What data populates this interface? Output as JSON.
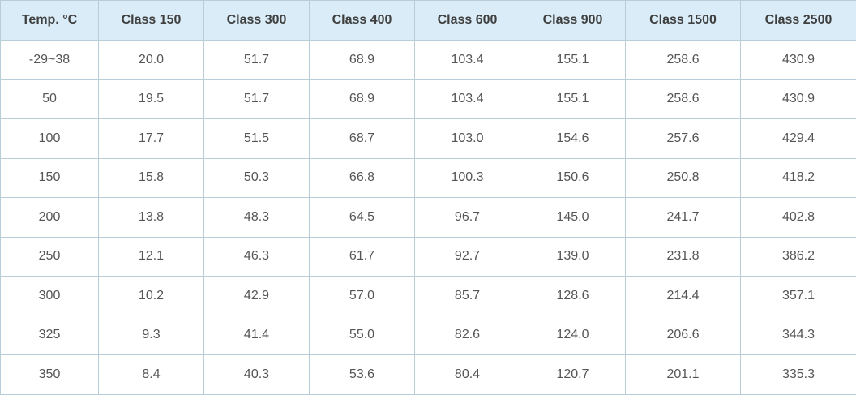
{
  "table": {
    "headers": [
      "Temp. °C",
      "Class 150",
      "Class 300",
      "Class 400",
      "Class 600",
      "Class 900",
      "Class 1500",
      "Class 2500"
    ],
    "rows": [
      [
        "-29~38",
        "20.0",
        "51.7",
        "68.9",
        "103.4",
        "155.1",
        "258.6",
        "430.9"
      ],
      [
        "50",
        "19.5",
        "51.7",
        "68.9",
        "103.4",
        "155.1",
        "258.6",
        "430.9"
      ],
      [
        "100",
        "17.7",
        "51.5",
        "68.7",
        "103.0",
        "154.6",
        "257.6",
        "429.4"
      ],
      [
        "150",
        "15.8",
        "50.3",
        "66.8",
        "100.3",
        "150.6",
        "250.8",
        "418.2"
      ],
      [
        "200",
        "13.8",
        "48.3",
        "64.5",
        "96.7",
        "145.0",
        "241.7",
        "402.8"
      ],
      [
        "250",
        "12.1",
        "46.3",
        "61.7",
        "92.7",
        "139.0",
        "231.8",
        "386.2"
      ],
      [
        "300",
        "10.2",
        "42.9",
        "57.0",
        "85.7",
        "128.6",
        "214.4",
        "357.1"
      ],
      [
        "325",
        "9.3",
        "41.4",
        "55.0",
        "82.6",
        "124.0",
        "206.6",
        "344.3"
      ],
      [
        "350",
        "8.4",
        "40.3",
        "53.6",
        "80.4",
        "120.7",
        "201.1",
        "335.3"
      ]
    ]
  },
  "colors": {
    "header_background": "#d9ecf7",
    "grid_border": "#b9cdd8",
    "header_text": "#3f3f3f",
    "cell_text": "#555555"
  }
}
